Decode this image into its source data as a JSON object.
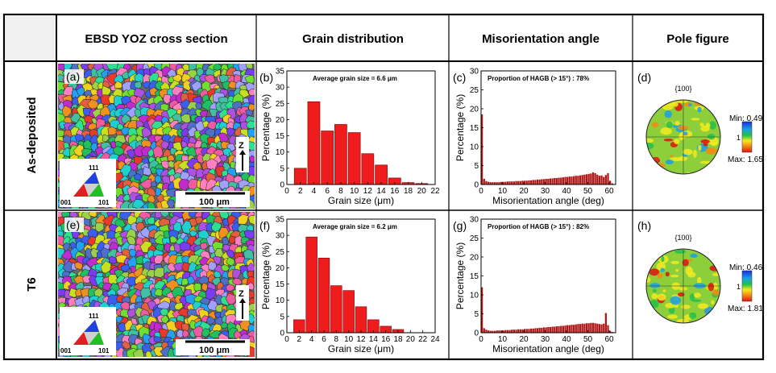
{
  "headers": {
    "col1": "EBSD YOZ cross section",
    "col2": "Grain distribution",
    "col3": "Misorientation angle",
    "col4": "Pole figure"
  },
  "rows": [
    {
      "label": "As-deposited",
      "ebsd": {
        "panel": "(a)",
        "scale_bar": "100 μm",
        "axis": "Z",
        "ipf_labels": {
          "top": "111",
          "left": "001",
          "right": "101"
        }
      },
      "grain": {
        "panel": "(b)",
        "annotation": "Average grain size = 6.6 μm"
      },
      "mis": {
        "panel": "(c)",
        "annotation": "Proportion of HAGB (> 15°) : 78%"
      },
      "pole": {
        "panel": "(d)",
        "title": "{100}",
        "min_label": "Min: 0.49",
        "mid_label": "1",
        "max_label": "Max: 1.65"
      }
    },
    {
      "label": "T6",
      "ebsd": {
        "panel": "(e)",
        "scale_bar": "100 μm",
        "axis": "Z",
        "ipf_labels": {
          "top": "111",
          "left": "001",
          "right": "101"
        }
      },
      "grain": {
        "panel": "(f)",
        "annotation": "Average grain size = 6.2 μm"
      },
      "mis": {
        "panel": "(g)",
        "annotation": "Proportion of HAGB (> 15°) : 82%"
      },
      "pole": {
        "panel": "(h)",
        "title": "{100}",
        "min_label": "Min: 0.46",
        "mid_label": "1",
        "max_label": "Max: 1.81"
      }
    }
  ],
  "colors": {
    "bar_red": "#ee1c1c",
    "mis_bar": "#b01818",
    "pole_green": "#8ccf3a"
  },
  "chart_data": [
    {
      "id": "b",
      "type": "bar",
      "xlabel": "Grain size (μm)",
      "ylabel": "Percentage (%)",
      "xlim": [
        0,
        22
      ],
      "ylim": [
        0,
        35
      ],
      "xticks": [
        0,
        2,
        4,
        6,
        8,
        10,
        12,
        14,
        16,
        18,
        20,
        22
      ],
      "yticks": [
        0,
        5,
        10,
        15,
        20,
        25,
        30,
        35
      ],
      "categories": [
        2,
        4,
        6,
        8,
        10,
        12,
        14,
        16,
        18,
        20
      ],
      "values": [
        5,
        25.5,
        16.5,
        18.5,
        16,
        9.5,
        6,
        2,
        0.6,
        0.3
      ],
      "annotation": "Average grain size = 6.6 μm"
    },
    {
      "id": "f",
      "type": "bar",
      "xlabel": "Grain size (μm)",
      "ylabel": "Percentage (%)",
      "xlim": [
        0,
        24
      ],
      "ylim": [
        0,
        35
      ],
      "xticks": [
        0,
        2,
        4,
        6,
        8,
        10,
        12,
        14,
        16,
        18,
        20,
        22,
        24
      ],
      "yticks": [
        0,
        5,
        10,
        15,
        20,
        25,
        30,
        35
      ],
      "categories": [
        2,
        4,
        6,
        8,
        10,
        12,
        14,
        16,
        18
      ],
      "values": [
        4,
        29.5,
        23,
        14.5,
        13,
        8,
        4,
        2,
        1
      ],
      "annotation": "Average grain size = 6.2 μm"
    },
    {
      "id": "c",
      "type": "bar",
      "xlabel": "Misorientation angle (deg)",
      "ylabel": "Percentage (%)",
      "xlim": [
        0,
        63
      ],
      "ylim": [
        0,
        30
      ],
      "xticks": [
        0,
        10,
        20,
        30,
        40,
        50,
        60
      ],
      "yticks": [
        0,
        5,
        10,
        15,
        20,
        25,
        30
      ],
      "bin_width": 1,
      "x": [
        1,
        2,
        3,
        4,
        5,
        6,
        7,
        8,
        9,
        10,
        11,
        12,
        13,
        14,
        15,
        16,
        17,
        18,
        19,
        20,
        21,
        22,
        23,
        24,
        25,
        26,
        27,
        28,
        29,
        30,
        31,
        32,
        33,
        34,
        35,
        36,
        37,
        38,
        39,
        40,
        41,
        42,
        43,
        44,
        45,
        46,
        47,
        48,
        49,
        50,
        51,
        52,
        53,
        54,
        55,
        56,
        57,
        58,
        59,
        60,
        61,
        62
      ],
      "values": [
        18.5,
        1.5,
        0.9,
        0.7,
        0.6,
        0.6,
        0.6,
        0.6,
        0.6,
        0.7,
        0.7,
        0.7,
        0.8,
        0.8,
        0.8,
        0.8,
        0.9,
        0.9,
        0.9,
        1.0,
        1.0,
        1.0,
        1.1,
        1.1,
        1.2,
        1.2,
        1.3,
        1.3,
        1.4,
        1.4,
        1.5,
        1.5,
        1.6,
        1.6,
        1.7,
        1.7,
        1.8,
        1.8,
        1.9,
        2.0,
        2.0,
        2.1,
        2.1,
        2.2,
        2.3,
        2.3,
        2.4,
        2.5,
        2.6,
        2.7,
        2.8,
        2.9,
        3.2,
        3.0,
        2.6,
        2.3,
        2.4,
        2.0,
        2.5,
        3.0,
        1.0,
        0.3
      ],
      "annotation": "Proportion of HAGB (> 15°) : 78%"
    },
    {
      "id": "g",
      "type": "bar",
      "xlabel": "Misorientation angle (deg)",
      "ylabel": "Percentage (%)",
      "xlim": [
        0,
        63
      ],
      "ylim": [
        0,
        30
      ],
      "xticks": [
        0,
        10,
        20,
        30,
        40,
        50,
        60
      ],
      "yticks": [
        0,
        5,
        10,
        15,
        20,
        25,
        30
      ],
      "bin_width": 1,
      "x": [
        1,
        2,
        3,
        4,
        5,
        6,
        7,
        8,
        9,
        10,
        11,
        12,
        13,
        14,
        15,
        16,
        17,
        18,
        19,
        20,
        21,
        22,
        23,
        24,
        25,
        26,
        27,
        28,
        29,
        30,
        31,
        32,
        33,
        34,
        35,
        36,
        37,
        38,
        39,
        40,
        41,
        42,
        43,
        44,
        45,
        46,
        47,
        48,
        49,
        50,
        51,
        52,
        53,
        54,
        55,
        56,
        57,
        58,
        59,
        60,
        61,
        62
      ],
      "values": [
        12,
        1.2,
        0.8,
        0.6,
        0.5,
        0.5,
        0.5,
        0.6,
        0.6,
        0.6,
        0.6,
        0.7,
        0.7,
        0.7,
        0.8,
        0.8,
        0.8,
        0.9,
        0.9,
        0.9,
        1.0,
        1.0,
        1.0,
        1.1,
        1.1,
        1.2,
        1.2,
        1.3,
        1.3,
        1.4,
        1.4,
        1.5,
        1.5,
        1.6,
        1.6,
        1.7,
        1.7,
        1.8,
        1.8,
        1.9,
        2.0,
        2.0,
        2.1,
        2.1,
        2.2,
        2.3,
        2.3,
        2.4,
        2.4,
        2.5,
        2.5,
        2.6,
        2.6,
        2.5,
        2.4,
        2.3,
        2.2,
        2.4,
        5.2,
        2.0,
        0.5,
        0.2
      ],
      "annotation": "Proportion of HAGB (> 15°) : 82%"
    }
  ]
}
